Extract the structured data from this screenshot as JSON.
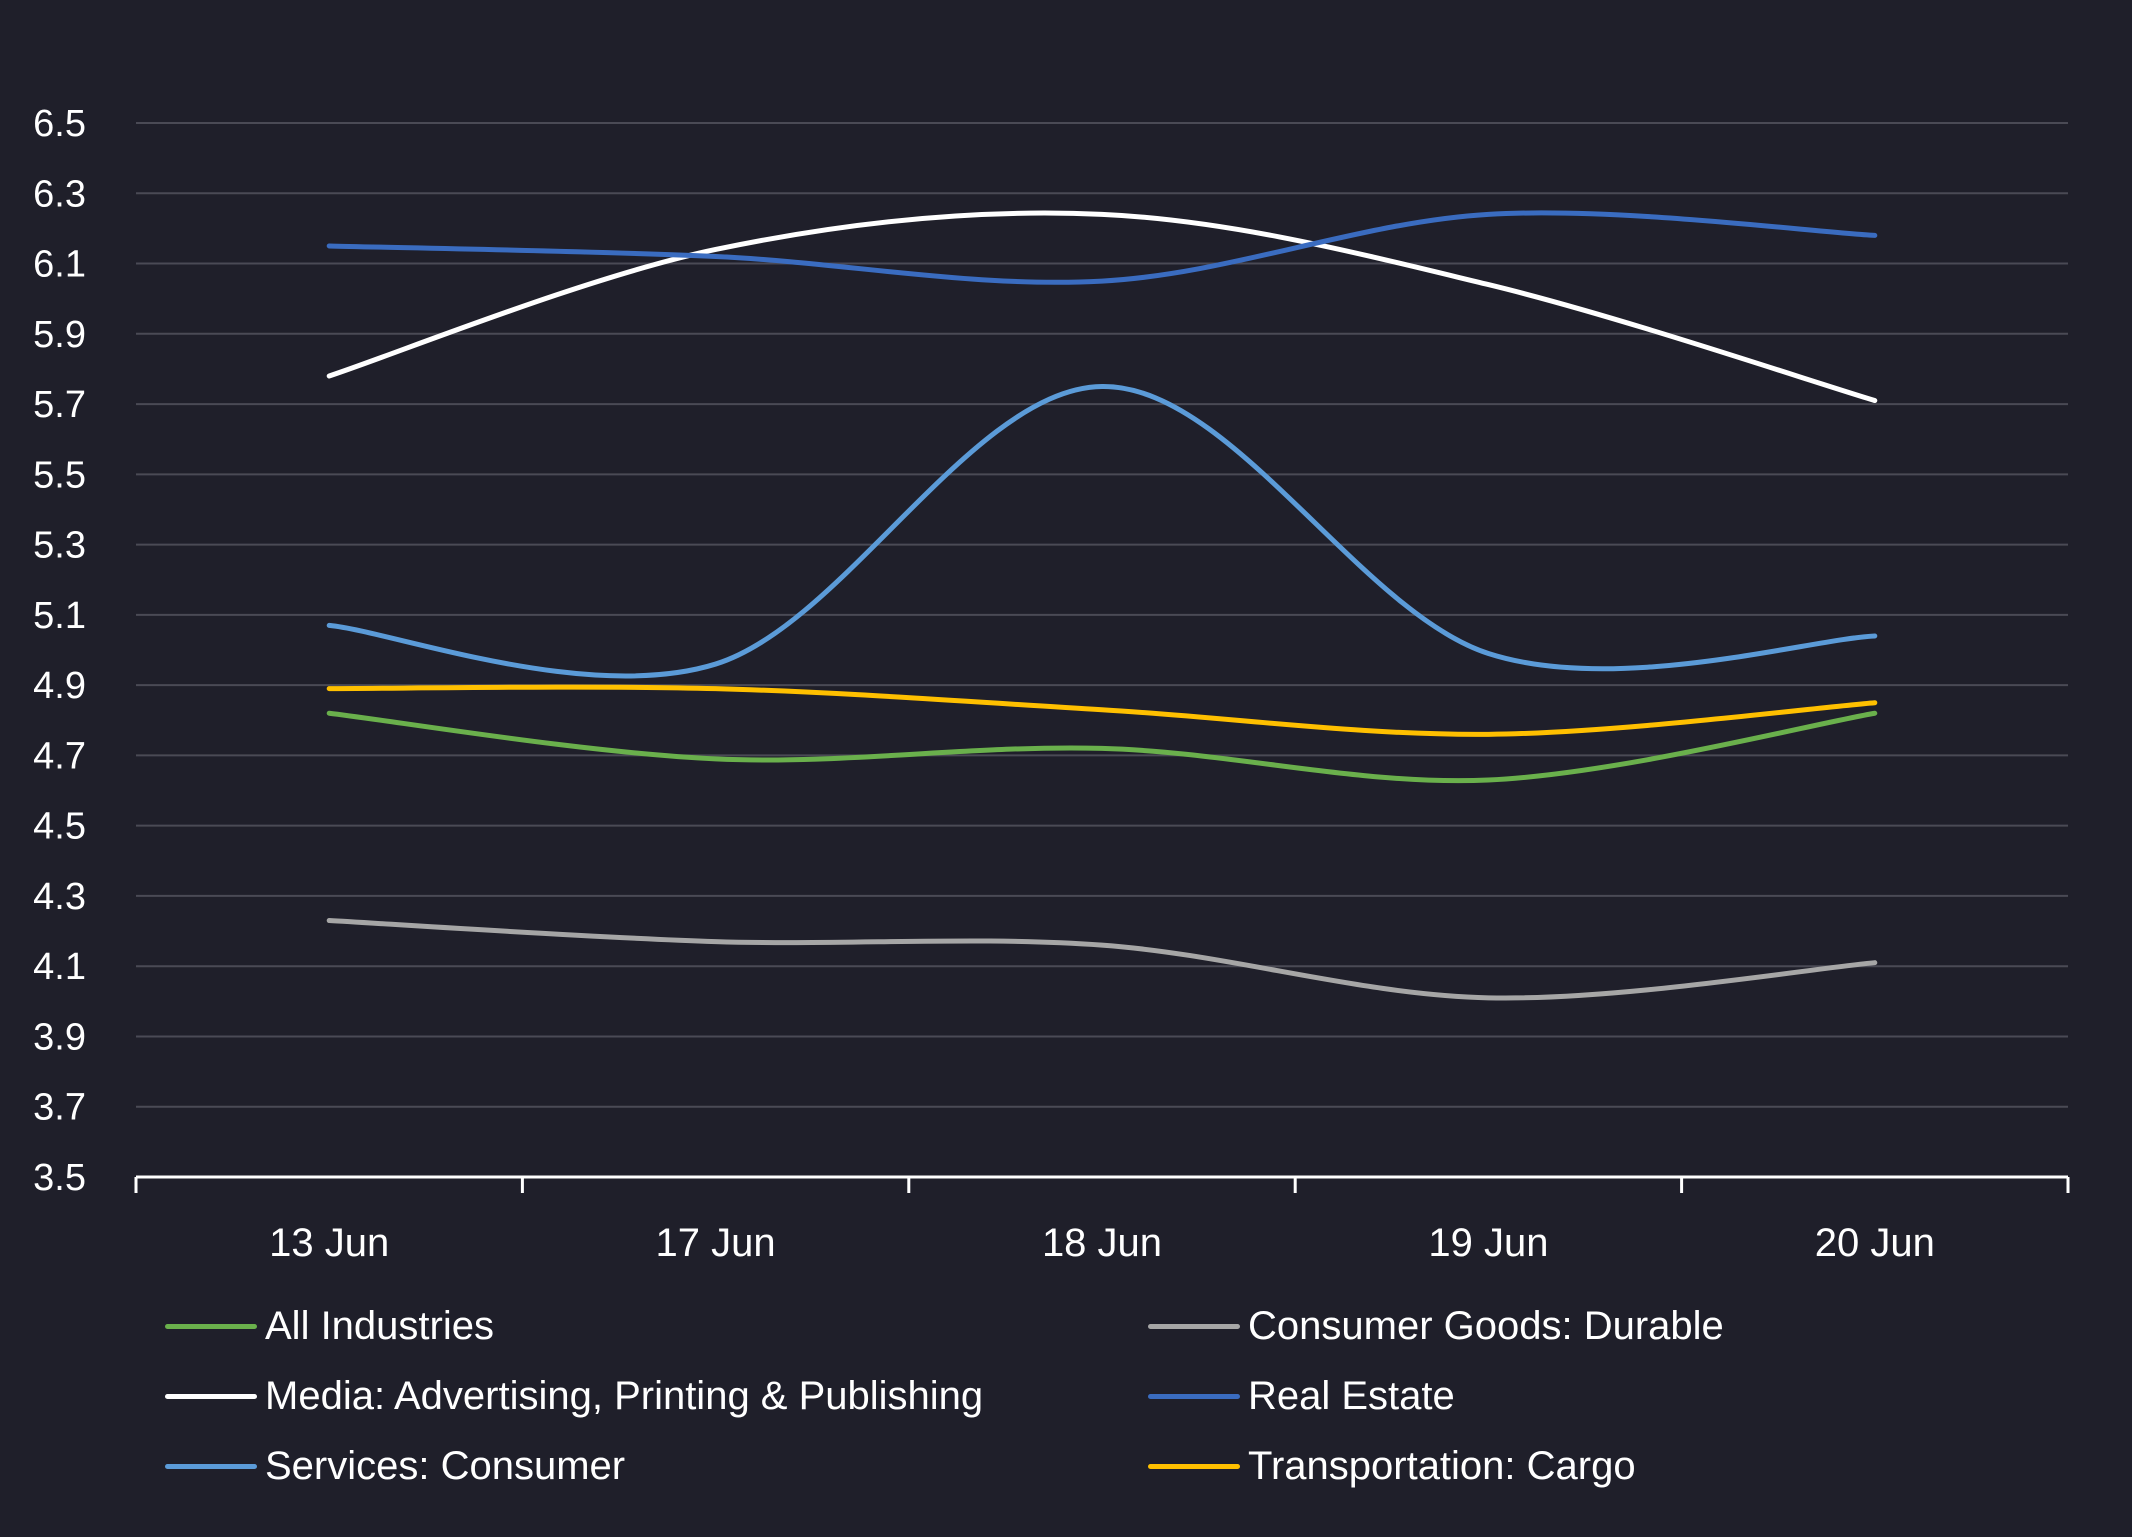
{
  "chart_data": {
    "type": "line",
    "title": "",
    "xlabel": "",
    "ylabel": "",
    "categories": [
      "13 Jun",
      "17 Jun",
      "18 Jun",
      "19 Jun",
      "20 Jun"
    ],
    "y_ticks": [
      "6.5",
      "6.3",
      "6.1",
      "5.9",
      "5.7",
      "5.5",
      "5.3",
      "5.1",
      "4.9",
      "4.7",
      "4.5",
      "4.3",
      "4.1",
      "3.9",
      "3.7",
      "3.5"
    ],
    "ylim": [
      3.5,
      6.5
    ],
    "grid": true,
    "legend_position": "bottom",
    "series": [
      {
        "name": "All Industries",
        "color": "#6ab04c",
        "values": [
          4.82,
          4.69,
          4.72,
          4.63,
          4.82
        ]
      },
      {
        "name": "Consumer Goods: Durable",
        "color": "#a6a6a6",
        "values": [
          4.23,
          4.17,
          4.16,
          4.01,
          4.11
        ]
      },
      {
        "name": "Media: Advertising, Printing & Publishing",
        "color": "#ffffff",
        "values": [
          5.78,
          6.14,
          6.24,
          6.04,
          5.71
        ]
      },
      {
        "name": "Real Estate",
        "color": "#3a6cc0",
        "values": [
          6.15,
          6.12,
          6.05,
          6.24,
          6.18
        ]
      },
      {
        "name": "Services: Consumer",
        "color": "#5b9bd8",
        "values": [
          5.07,
          4.96,
          5.75,
          4.99,
          5.04
        ]
      },
      {
        "name": "Transportation: Cargo",
        "color": "#ffc000",
        "values": [
          4.89,
          4.89,
          4.83,
          4.76,
          4.85
        ]
      }
    ]
  }
}
